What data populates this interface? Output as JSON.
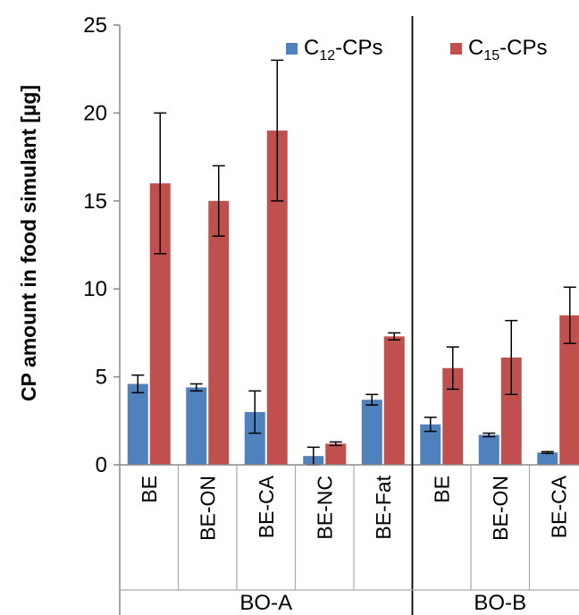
{
  "chart_data": {
    "type": "bar",
    "ylabel": "CP amount in food simulant [µg]",
    "ylim": [
      0,
      25
    ],
    "yticks": [
      0,
      5,
      10,
      15,
      20,
      25
    ],
    "grid": false,
    "legend_position": "top",
    "groups": [
      {
        "label": "BO-A",
        "categories": [
          "BE",
          "BE-ON",
          "BE-CA",
          "BE-NC",
          "BE-Fat"
        ]
      },
      {
        "label": "BO-B",
        "categories": [
          "BE",
          "BE-ON",
          "BE-CA"
        ]
      }
    ],
    "series": [
      {
        "name_main": "C",
        "name_sub": "12",
        "name_suffix": "-CPs",
        "color": "#4F81BD",
        "values": [
          4.6,
          4.4,
          3.0,
          0.5,
          3.7,
          2.3,
          1.7,
          0.7
        ],
        "errors": [
          0.5,
          0.2,
          1.2,
          0.5,
          0.3,
          0.4,
          0.1,
          0.05
        ]
      },
      {
        "name_main": "C",
        "name_sub": "15",
        "name_suffix": "-CPs",
        "color": "#C0504D",
        "values": [
          16.0,
          15.0,
          19.0,
          1.2,
          7.3,
          5.5,
          6.1,
          8.5
        ],
        "errors": [
          4.0,
          2.0,
          4.0,
          0.1,
          0.2,
          1.2,
          2.1,
          1.6
        ]
      }
    ]
  }
}
